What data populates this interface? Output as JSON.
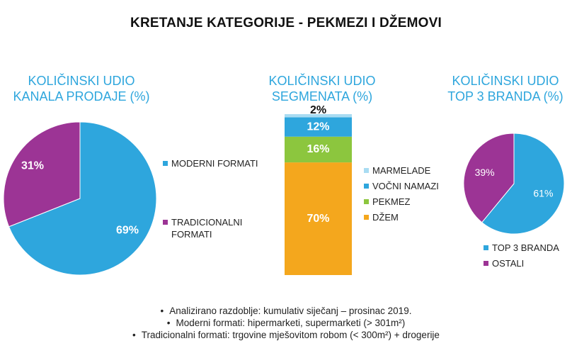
{
  "page": {
    "title": "KRETANJE KATEGORIJE - PEKMEZI I DŽEMOVI"
  },
  "chart_data": [
    {
      "type": "pie",
      "title_lines": [
        "KOLIČINSKI UDIO",
        "KANALA PRODAJE (%)"
      ],
      "categories": [
        "MODERNI FORMATI",
        "TRADICIONALNI\nFORMATI"
      ],
      "values": [
        69,
        31
      ],
      "labels": [
        "69%",
        "31%"
      ],
      "colors": [
        "#2ea6dd",
        "#9c3495"
      ],
      "legend_position": "right"
    },
    {
      "type": "bar",
      "stacked": true,
      "title_lines": [
        "KOLIČINSKI UDIO",
        "SEGMENATA (%)"
      ],
      "categories": [
        "DŽEM",
        "PEKMEZ",
        "VOČNI NAMAZI",
        "MARMELADE"
      ],
      "values": [
        70,
        16,
        12,
        2
      ],
      "labels": [
        "70%",
        "16%",
        "12%",
        "2%"
      ],
      "colors": [
        "#f4a71d",
        "#8cc63e",
        "#2ea6dd",
        "#a9dcf2"
      ],
      "legend_order": [
        "MARMELADE",
        "VOČNI NAMAZI",
        "PEKMEZ",
        "DŽEM"
      ],
      "legend_colors": [
        "#a9dcf2",
        "#2ea6dd",
        "#8cc63e",
        "#f4a71d"
      ],
      "legend_position": "right"
    },
    {
      "type": "pie",
      "title_lines": [
        "KOLIČINSKI UDIO",
        "TOP 3 BRANDA (%)"
      ],
      "categories": [
        "TOP 3 BRANDA",
        "OSTALI"
      ],
      "values": [
        61,
        39
      ],
      "labels": [
        "61%",
        "39%"
      ],
      "colors": [
        "#2ea6dd",
        "#9c3495"
      ],
      "legend_position": "bottom"
    }
  ],
  "notes": {
    "bullet": "•",
    "items": [
      "Analizirano razdoblje: kumulativ siječanj – prosinac 2019.",
      "Moderni formati: hipermarketi, supermarketi (> 301m²)",
      "Tradicionalni formati: trgovine mješovitom robom (< 300m²) + drogerije"
    ]
  }
}
